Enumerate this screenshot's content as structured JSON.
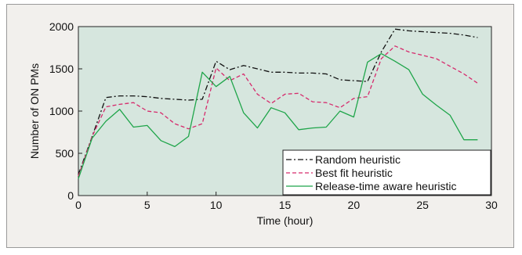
{
  "chart_data": {
    "type": "line",
    "xlabel": "Time (hour)",
    "ylabel": "Number of ON PMs",
    "xlim": [
      0,
      30
    ],
    "ylim": [
      0,
      2000
    ],
    "xticks": [
      0,
      5,
      10,
      15,
      20,
      25,
      30
    ],
    "yticks": [
      0,
      500,
      1000,
      1500,
      2000
    ],
    "plot_background": "#d6e6de",
    "grid": false,
    "legend_position": "bottom-right",
    "series": [
      {
        "name": "Random heuristic",
        "color": "#111111",
        "dash": "dashdot",
        "points": [
          [
            0,
            250
          ],
          [
            1,
            700
          ],
          [
            2,
            1160
          ],
          [
            3,
            1180
          ],
          [
            4,
            1180
          ],
          [
            5,
            1170
          ],
          [
            6,
            1150
          ],
          [
            7,
            1140
          ],
          [
            8,
            1130
          ],
          [
            9,
            1140
          ],
          [
            10,
            1590
          ],
          [
            11,
            1490
          ],
          [
            12,
            1540
          ],
          [
            13,
            1500
          ],
          [
            14,
            1460
          ],
          [
            15,
            1460
          ],
          [
            16,
            1450
          ],
          [
            17,
            1450
          ],
          [
            18,
            1440
          ],
          [
            19,
            1370
          ],
          [
            20,
            1360
          ],
          [
            21,
            1350
          ],
          [
            22,
            1700
          ],
          [
            23,
            1970
          ],
          [
            24,
            1950
          ],
          [
            25,
            1940
          ],
          [
            26,
            1930
          ],
          [
            27,
            1920
          ],
          [
            28,
            1900
          ],
          [
            29,
            1870
          ]
        ]
      },
      {
        "name": "Best fit heuristic",
        "color": "#d62a6c",
        "dash": "dashed",
        "points": [
          [
            0,
            230
          ],
          [
            1,
            700
          ],
          [
            2,
            1050
          ],
          [
            3,
            1080
          ],
          [
            4,
            1100
          ],
          [
            5,
            1000
          ],
          [
            6,
            980
          ],
          [
            7,
            850
          ],
          [
            8,
            790
          ],
          [
            9,
            850
          ],
          [
            10,
            1510
          ],
          [
            11,
            1360
          ],
          [
            12,
            1440
          ],
          [
            13,
            1200
          ],
          [
            14,
            1090
          ],
          [
            15,
            1200
          ],
          [
            16,
            1210
          ],
          [
            17,
            1110
          ],
          [
            18,
            1100
          ],
          [
            19,
            1040
          ],
          [
            20,
            1150
          ],
          [
            21,
            1170
          ],
          [
            22,
            1620
          ],
          [
            23,
            1770
          ],
          [
            24,
            1700
          ],
          [
            25,
            1660
          ],
          [
            26,
            1620
          ],
          [
            27,
            1530
          ],
          [
            28,
            1440
          ],
          [
            29,
            1330
          ]
        ]
      },
      {
        "name": "Release-time aware heuristic",
        "color": "#1fa54a",
        "dash": "solid",
        "points": [
          [
            0,
            200
          ],
          [
            1,
            680
          ],
          [
            2,
            880
          ],
          [
            3,
            1020
          ],
          [
            4,
            810
          ],
          [
            5,
            830
          ],
          [
            6,
            650
          ],
          [
            7,
            580
          ],
          [
            8,
            700
          ],
          [
            9,
            1460
          ],
          [
            10,
            1290
          ],
          [
            11,
            1410
          ],
          [
            12,
            980
          ],
          [
            13,
            800
          ],
          [
            14,
            1040
          ],
          [
            15,
            980
          ],
          [
            16,
            780
          ],
          [
            17,
            800
          ],
          [
            18,
            810
          ],
          [
            19,
            1000
          ],
          [
            20,
            930
          ],
          [
            21,
            1580
          ],
          [
            22,
            1680
          ],
          [
            23,
            1590
          ],
          [
            24,
            1490
          ],
          [
            25,
            1200
          ],
          [
            26,
            1070
          ],
          [
            27,
            950
          ],
          [
            28,
            660
          ],
          [
            29,
            660
          ]
        ]
      }
    ]
  }
}
